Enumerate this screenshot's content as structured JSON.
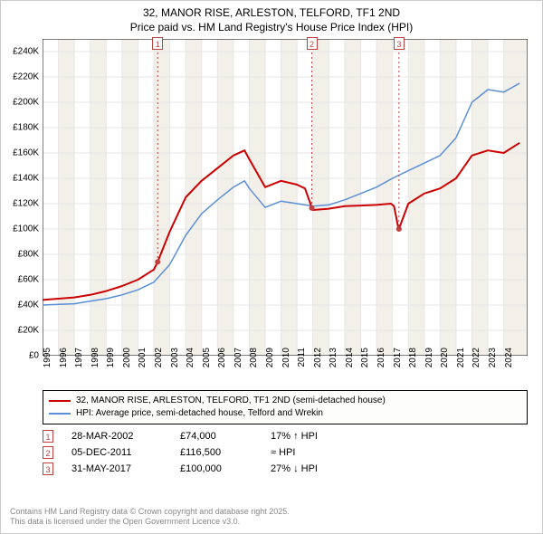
{
  "title_line1": "32, MANOR RISE, ARLESTON, TELFORD, TF1 2ND",
  "title_line2": "Price paid vs. HM Land Registry's House Price Index (HPI)",
  "chart": {
    "type": "line",
    "background_color": "#ffffff",
    "grid_color": "#e6e6e6",
    "axis_color": "#000000",
    "plot_bg_highlight": "#f3f0ea",
    "xlim": [
      1995,
      2025.5
    ],
    "ylim": [
      0,
      250000
    ],
    "y_ticks": [
      0,
      20000,
      40000,
      60000,
      80000,
      100000,
      120000,
      140000,
      160000,
      180000,
      200000,
      220000,
      240000
    ],
    "y_tick_labels": [
      "£0",
      "£20K",
      "£40K",
      "£60K",
      "£80K",
      "£100K",
      "£120K",
      "£140K",
      "£160K",
      "£180K",
      "£200K",
      "£220K",
      "£240K"
    ],
    "x_ticks": [
      1995,
      1996,
      1997,
      1998,
      1999,
      2000,
      2001,
      2002,
      2003,
      2004,
      2005,
      2006,
      2007,
      2008,
      2009,
      2010,
      2011,
      2012,
      2013,
      2014,
      2015,
      2016,
      2017,
      2018,
      2019,
      2020,
      2021,
      2022,
      2023,
      2024
    ],
    "series": [
      {
        "name": "price_paid",
        "label": "32, MANOR RISE, ARLESTON, TELFORD, TF1 2ND (semi-detached house)",
        "color": "#cc0000",
        "width": 2,
        "data": [
          [
            1995,
            44000
          ],
          [
            1996,
            45000
          ],
          [
            1997,
            46000
          ],
          [
            1998,
            48000
          ],
          [
            1999,
            51000
          ],
          [
            2000,
            55000
          ],
          [
            2001,
            60000
          ],
          [
            2002,
            68000
          ],
          [
            2002.24,
            74000
          ],
          [
            2003,
            98000
          ],
          [
            2004,
            125000
          ],
          [
            2005,
            138000
          ],
          [
            2006,
            148000
          ],
          [
            2007,
            158000
          ],
          [
            2007.7,
            162000
          ],
          [
            2008,
            155000
          ],
          [
            2009,
            133000
          ],
          [
            2010,
            138000
          ],
          [
            2011,
            135000
          ],
          [
            2011.5,
            132000
          ],
          [
            2011.9,
            118000
          ],
          [
            2011.93,
            116500
          ],
          [
            2012,
            115000
          ],
          [
            2013,
            116000
          ],
          [
            2014,
            118000
          ],
          [
            2015,
            118500
          ],
          [
            2016,
            119000
          ],
          [
            2016.9,
            120000
          ],
          [
            2017.1,
            118000
          ],
          [
            2017.35,
            102000
          ],
          [
            2017.41,
            100000
          ],
          [
            2018,
            120000
          ],
          [
            2019,
            128000
          ],
          [
            2020,
            132000
          ],
          [
            2021,
            140000
          ],
          [
            2022,
            158000
          ],
          [
            2023,
            162000
          ],
          [
            2024,
            160000
          ],
          [
            2025,
            168000
          ]
        ]
      },
      {
        "name": "hpi",
        "label": "HPI: Average price, semi-detached house, Telford and Wrekin",
        "color": "#5b8fd6",
        "width": 1.5,
        "data": [
          [
            1995,
            40000
          ],
          [
            1996,
            40500
          ],
          [
            1997,
            41000
          ],
          [
            1998,
            43000
          ],
          [
            1999,
            45000
          ],
          [
            2000,
            48000
          ],
          [
            2001,
            52000
          ],
          [
            2002,
            58000
          ],
          [
            2003,
            72000
          ],
          [
            2004,
            95000
          ],
          [
            2005,
            112000
          ],
          [
            2006,
            123000
          ],
          [
            2007,
            133000
          ],
          [
            2007.7,
            138000
          ],
          [
            2008,
            132000
          ],
          [
            2009,
            117000
          ],
          [
            2010,
            122000
          ],
          [
            2011,
            120000
          ],
          [
            2012,
            118000
          ],
          [
            2013,
            119000
          ],
          [
            2014,
            123000
          ],
          [
            2015,
            128000
          ],
          [
            2016,
            133000
          ],
          [
            2017,
            140000
          ],
          [
            2018,
            146000
          ],
          [
            2019,
            152000
          ],
          [
            2020,
            158000
          ],
          [
            2021,
            172000
          ],
          [
            2022,
            200000
          ],
          [
            2023,
            210000
          ],
          [
            2024,
            208000
          ],
          [
            2025,
            215000
          ]
        ]
      }
    ],
    "sale_markers": [
      {
        "n": "1",
        "x": 2002.24,
        "y": 74000,
        "color": "#c04040"
      },
      {
        "n": "2",
        "x": 2011.93,
        "y": 116500,
        "color": "#c04040"
      },
      {
        "n": "3",
        "x": 2017.41,
        "y": 100000,
        "color": "#c04040"
      }
    ]
  },
  "legend": {
    "items": [
      {
        "color": "#cc0000",
        "label": "32, MANOR RISE, ARLESTON, TELFORD, TF1 2ND (semi-detached house)"
      },
      {
        "color": "#5b8fd6",
        "label": "HPI: Average price, semi-detached house, Telford and Wrekin"
      }
    ]
  },
  "events": [
    {
      "n": "1",
      "date": "28-MAR-2002",
      "price": "£74,000",
      "hpi": "17% ↑ HPI"
    },
    {
      "n": "2",
      "date": "05-DEC-2011",
      "price": "£116,500",
      "hpi": "≈ HPI"
    },
    {
      "n": "3",
      "date": "31-MAY-2017",
      "price": "£100,000",
      "hpi": "27% ↓ HPI"
    }
  ],
  "footer_line1": "Contains HM Land Registry data © Crown copyright and database right 2025.",
  "footer_line2": "This data is licensed under the Open Government Licence v3.0."
}
